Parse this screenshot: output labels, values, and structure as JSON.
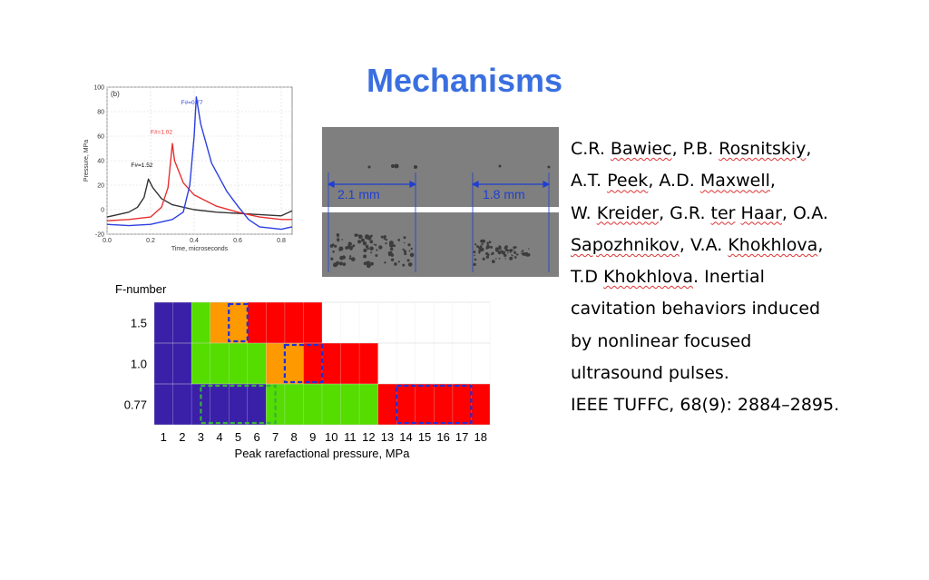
{
  "slide": {
    "title": "Mechanisms",
    "title_color": "#3a6fe0"
  },
  "citation": {
    "lines": [
      [
        {
          "t": "C.R. "
        },
        {
          "t": "Bawiec",
          "spell": true
        },
        {
          "t": ", P.B. "
        },
        {
          "t": "Rosnitskiy",
          "spell": true
        },
        {
          "t": ","
        }
      ],
      [
        {
          "t": "A.T. "
        },
        {
          "t": "Peek",
          "spell": true
        },
        {
          "t": ", A.D. "
        },
        {
          "t": "Maxwell",
          "spell": true
        },
        {
          "t": ","
        }
      ],
      [
        {
          "t": "W. "
        },
        {
          "t": "Kreider",
          "spell": true
        },
        {
          "t": ", G.R. "
        },
        {
          "t": "ter",
          "spell": true
        },
        {
          "t": " "
        },
        {
          "t": "Haar",
          "spell": true
        },
        {
          "t": ", O.A."
        }
      ],
      [
        {
          "t": "Sapozhnikov",
          "spell": true
        },
        {
          "t": ", V.A. "
        },
        {
          "t": "Khokhlova",
          "spell": true
        },
        {
          "t": ","
        }
      ],
      [
        {
          "t": "T.D "
        },
        {
          "t": "Khokhlova",
          "spell": true
        },
        {
          "t": ". Inertial"
        }
      ],
      [
        {
          "t": "cavitation behaviors induced"
        }
      ],
      [
        {
          "t": "by nonlinear focused"
        }
      ],
      [
        {
          "t": "ultrasound pulses."
        }
      ],
      [
        {
          "t": "IEEE TUFFC, 68(9): 2884–2895."
        }
      ]
    ]
  },
  "photo": {
    "left_label": "2.1 mm",
    "right_label": "1.8 mm",
    "label_color": "#1f3fd0"
  },
  "chart_data": [
    {
      "type": "line",
      "panel_label": "(b)",
      "xlabel": "Time, microseconds",
      "ylabel": "Pressure, MPa",
      "xlim": [
        0.0,
        0.85
      ],
      "ylim": [
        -20,
        100
      ],
      "xticks": [
        "0.0",
        "0.2",
        "0.4",
        "0.6",
        "0.8"
      ],
      "xtick_values": [
        0.0,
        0.2,
        0.4,
        0.6,
        0.8
      ],
      "yticks": [
        "-20",
        "0",
        "20",
        "40",
        "60",
        "80",
        "100"
      ],
      "ytick_values": [
        -20,
        0,
        20,
        40,
        60,
        80,
        100
      ],
      "grid": true,
      "series": [
        {
          "name": "F#=1.52",
          "color": "#333333",
          "label_color": "#000000",
          "label_at": [
            0.11,
            35
          ],
          "x": [
            0.0,
            0.05,
            0.1,
            0.14,
            0.17,
            0.19,
            0.21,
            0.25,
            0.3,
            0.4,
            0.5,
            0.6,
            0.7,
            0.8,
            0.85
          ],
          "y": [
            -6,
            -4,
            -2,
            2,
            10,
            25,
            18,
            9,
            4,
            0,
            -2,
            -3,
            -4,
            -5,
            -1
          ]
        },
        {
          "name": "F#=1.02",
          "color": "#e83030",
          "label_color": "#e83030",
          "label_at": [
            0.2,
            62
          ],
          "x": [
            0.0,
            0.1,
            0.2,
            0.25,
            0.28,
            0.3,
            0.31,
            0.35,
            0.4,
            0.5,
            0.6,
            0.65,
            0.7,
            0.8,
            0.85
          ],
          "y": [
            -9,
            -8,
            -6,
            2,
            18,
            54,
            40,
            22,
            12,
            3,
            -2,
            -4,
            -6,
            -8,
            -8
          ]
        },
        {
          "name": "F#=0.77",
          "color": "#2a3fe0",
          "label_color": "#2a3fe0",
          "label_at": [
            0.34,
            86
          ],
          "x": [
            0.0,
            0.1,
            0.2,
            0.3,
            0.35,
            0.38,
            0.4,
            0.41,
            0.43,
            0.48,
            0.55,
            0.6,
            0.65,
            0.7,
            0.8,
            0.85
          ],
          "y": [
            -12,
            -13,
            -12,
            -8,
            -2,
            20,
            60,
            92,
            70,
            38,
            15,
            3,
            -8,
            -14,
            -16,
            -14
          ]
        }
      ]
    },
    {
      "type": "heatmap",
      "ylabel": "F-number",
      "xlabel": "Peak rarefactional pressure, MPa",
      "x_categories": [
        "1",
        "2",
        "3",
        "4",
        "5",
        "6",
        "7",
        "8",
        "9",
        "10",
        "11",
        "12",
        "13",
        "14",
        "15",
        "16",
        "17",
        "18"
      ],
      "y_categories": [
        "1.5",
        "1.0",
        "0.77"
      ],
      "colors": {
        "blue": "#3a1fa8",
        "green": "#55dd00",
        "orange": "#ff9900",
        "red": "#ff0000",
        "empty": "#ffffff"
      },
      "rows": [
        {
          "f": "1.5",
          "segments": [
            {
              "from": 0.5,
              "to": 2.5,
              "c": "blue"
            },
            {
              "from": 2.5,
              "to": 3.5,
              "c": "green"
            },
            {
              "from": 3.5,
              "to": 5.5,
              "c": "orange"
            },
            {
              "from": 5.5,
              "to": 9.5,
              "c": "red"
            }
          ]
        },
        {
          "f": "1.0",
          "segments": [
            {
              "from": 0.5,
              "to": 2.5,
              "c": "blue"
            },
            {
              "from": 2.5,
              "to": 6.5,
              "c": "green"
            },
            {
              "from": 6.5,
              "to": 8.5,
              "c": "orange"
            },
            {
              "from": 8.5,
              "to": 12.5,
              "c": "red"
            }
          ]
        },
        {
          "f": "0.77",
          "segments": [
            {
              "from": 0.5,
              "to": 6.5,
              "c": "blue"
            },
            {
              "from": 6.5,
              "to": 12.5,
              "c": "green"
            },
            {
              "from": 12.5,
              "to": 18.5,
              "c": "red"
            }
          ]
        }
      ],
      "highlights": [
        {
          "row": "1.5",
          "from": 4.0,
          "to": 5.0,
          "style": "blue-dash"
        },
        {
          "row": "1.0",
          "from": 7.0,
          "to": 9.0,
          "style": "blue-dash"
        },
        {
          "row": "0.77",
          "from": 2.5,
          "to": 6.5,
          "style": "green-dash"
        },
        {
          "row": "0.77",
          "from": 13.0,
          "to": 17.0,
          "style": "blue-dash"
        }
      ]
    }
  ]
}
